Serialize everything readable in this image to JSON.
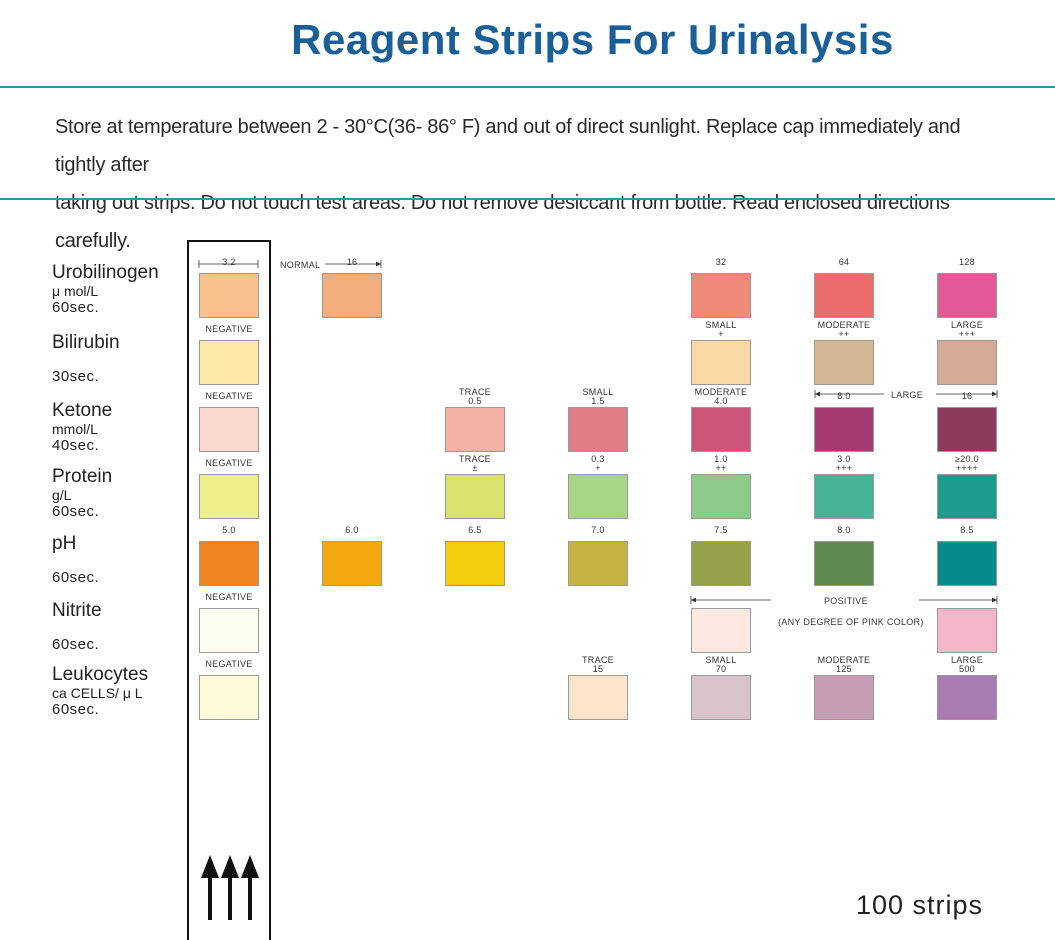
{
  "header": {
    "title": "Reagent Strips For Urinalysis"
  },
  "storage": {
    "line1": "Store  at temperature  between 2 - 30°C(36- 86° F) and  out  of direct  sunlight.  Replace  cap immediately  and  tightly after",
    "line2": "taking out strips. Do not  touch test areas. Do not  remove desiccant  from bottle. Read  enclosed directions carefully."
  },
  "params": [
    {
      "name": "Urobilinogen",
      "unit": "μ mol/L",
      "time": "60sec."
    },
    {
      "name": "Bilirubin",
      "unit": "",
      "time": "30sec."
    },
    {
      "name": "Ketone",
      "unit": "mmol/L",
      "time": "40sec."
    },
    {
      "name": "Protein",
      "unit": "g/L",
      "time": "60sec."
    },
    {
      "name": "pH",
      "unit": "",
      "time": "60sec."
    },
    {
      "name": "Nitrite",
      "unit": "",
      "time": "60sec."
    },
    {
      "name": "Leukocytes",
      "unit": "ca CELLS/ μ L",
      "time": "60sec."
    }
  ],
  "swatches": [
    {
      "color": "#f7c28e",
      "label": "3.2"
    },
    {
      "color": "#f4ae7c",
      "label": "16"
    },
    {
      "color": "#f08a78",
      "label": "32"
    },
    {
      "color": "#ea6d6a",
      "label": "64"
    },
    {
      "color": "#e35995",
      "label": "128"
    },
    {
      "color": "#fde8a8",
      "label": "NEGATIVE"
    },
    {
      "color": "#fbd9a6",
      "label": "SMALL",
      "label2": "+"
    },
    {
      "color": "#d4b894",
      "label": "MODERATE",
      "label2": "++"
    },
    {
      "color": "#d3ab95",
      "label": "LARGE",
      "label2": "+++"
    },
    {
      "color": "#f9d9cf",
      "label": "NEGATIVE"
    },
    {
      "color": "#f3b2a4",
      "label": "TRACE",
      "label2": "0.5"
    },
    {
      "color": "#de7e86",
      "label": "SMALL",
      "label2": "1.5"
    },
    {
      "color": "#cc5579",
      "label": "MODERATE",
      "label2": "4.0"
    },
    {
      "color": "#a63b72",
      "label": "8.0"
    },
    {
      "color": "#8e3a5c",
      "label": "16"
    },
    {
      "color": "#edf08a",
      "label": "NEGATIVE"
    },
    {
      "color": "#dae26c",
      "label": "TRACE",
      "label2": "±"
    },
    {
      "color": "#a8d486",
      "label": "0.3",
      "label2": "+"
    },
    {
      "color": "#8ccb8a",
      "label": "1.0",
      "label2": "++"
    },
    {
      "color": "#45b395",
      "label": "3.0",
      "label2": "+++"
    },
    {
      "color": "#1a9b8b",
      "label": "≥20.0",
      "label2": "++++"
    },
    {
      "color": "#ee8422",
      "label": "5.0"
    },
    {
      "color": "#f2a80e",
      "label": "6.0"
    },
    {
      "color": "#f3ce0c",
      "label": "6.5"
    },
    {
      "color": "#c6b142",
      "label": "7.0"
    },
    {
      "color": "#97a04b",
      "label": "7.5"
    },
    {
      "color": "#5e8a50",
      "label": "8.0"
    },
    {
      "color": "#068b8a",
      "label": "8.5"
    },
    {
      "color": "#fdfcf1",
      "label": "NEGATIVE"
    },
    {
      "color": "#fde9e2"
    },
    {
      "color": "#f4b7c9"
    },
    {
      "color": "#fefbdb",
      "label": "NEGATIVE"
    },
    {
      "color": "#fde5cc",
      "label": "TRACE",
      "label2": "15"
    },
    {
      "color": "#d9c3cd",
      "label": "SMALL",
      "label2": "70"
    },
    {
      "color": "#c69cb5",
      "label": "MODERATE",
      "label2": "125"
    },
    {
      "color": "#a97bb3",
      "label": "LARGE",
      "label2": "500"
    }
  ],
  "annotations": {
    "normal": "NORMAL",
    "ketone_large": "LARGE",
    "positive": "POSITIVE",
    "pink_note": "(ANY DEGREE OF PINK COLOR)"
  },
  "footer": {
    "count": "100 strips"
  }
}
